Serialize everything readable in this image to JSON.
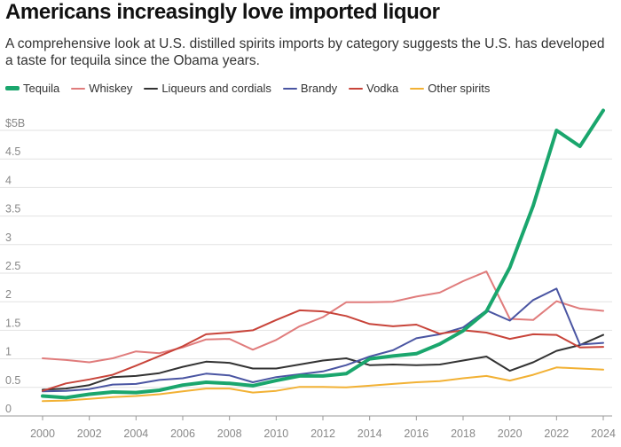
{
  "header": {
    "title": "Americans increasingly love imported liquor",
    "subtitle": "A comprehensive look at U.S. distilled spirits imports by category suggests the U.S. has developed a taste for tequila since the Obama years."
  },
  "chart_data": {
    "type": "line",
    "title": "Americans increasingly love imported liquor",
    "subtitle": "A comprehensive look at U.S. distilled spirits imports by category suggests the U.S. has developed a taste for tequila since the Obama years.",
    "xlabel": "",
    "ylabel": "",
    "x": [
      2000,
      2001,
      2002,
      2003,
      2004,
      2005,
      2006,
      2007,
      2008,
      2009,
      2010,
      2011,
      2012,
      2013,
      2014,
      2015,
      2016,
      2017,
      2018,
      2019,
      2020,
      2021,
      2022,
      2023,
      2024
    ],
    "xlim": [
      2000,
      2024
    ],
    "ylim": [
      0,
      5
    ],
    "grid": true,
    "legend_position": "top",
    "x_ticks": [
      "2000",
      "2002",
      "2004",
      "2006",
      "2008",
      "2010",
      "2012",
      "2014",
      "2016",
      "2018",
      "2020",
      "2022",
      "2024"
    ],
    "y_ticks": [
      "0",
      "0.5",
      "1",
      "1.5",
      "2",
      "2.5",
      "3",
      "3.5",
      "4",
      "4.5",
      "$5B"
    ],
    "series": [
      {
        "name": "Tequila",
        "color": "#1aa66d",
        "width": 4,
        "values": [
          0.35,
          0.32,
          0.38,
          0.42,
          0.41,
          0.45,
          0.54,
          0.59,
          0.57,
          0.53,
          0.62,
          0.7,
          0.7,
          0.74,
          1.0,
          1.05,
          1.09,
          1.26,
          1.49,
          1.83,
          2.6,
          3.68,
          5.0,
          4.72,
          5.35
        ]
      },
      {
        "name": "Whiskey",
        "color": "#e07c7c",
        "width": 2,
        "values": [
          1.01,
          0.98,
          0.94,
          1.01,
          1.13,
          1.1,
          1.2,
          1.34,
          1.35,
          1.16,
          1.33,
          1.57,
          1.73,
          1.99,
          1.99,
          2.0,
          2.09,
          2.16,
          2.36,
          2.53,
          1.7,
          1.68,
          2.01,
          1.88,
          1.84
        ]
      },
      {
        "name": "Liqueurs and cordials",
        "color": "#333333",
        "width": 2,
        "values": [
          0.46,
          0.48,
          0.54,
          0.68,
          0.7,
          0.75,
          0.86,
          0.95,
          0.93,
          0.83,
          0.83,
          0.9,
          0.97,
          1.01,
          0.89,
          0.9,
          0.89,
          0.9,
          0.97,
          1.04,
          0.79,
          0.94,
          1.14,
          1.24,
          1.42
        ]
      },
      {
        "name": "Brandy",
        "color": "#4a55a2",
        "width": 2,
        "values": [
          0.43,
          0.44,
          0.47,
          0.55,
          0.56,
          0.63,
          0.66,
          0.74,
          0.71,
          0.59,
          0.68,
          0.73,
          0.78,
          0.89,
          1.04,
          1.15,
          1.36,
          1.43,
          1.55,
          1.85,
          1.67,
          2.03,
          2.23,
          1.25,
          1.28
        ]
      },
      {
        "name": "Vodka",
        "color": "#c8443a",
        "width": 2,
        "values": [
          0.44,
          0.57,
          0.64,
          0.72,
          0.88,
          1.05,
          1.22,
          1.43,
          1.46,
          1.5,
          1.68,
          1.85,
          1.83,
          1.75,
          1.61,
          1.57,
          1.6,
          1.44,
          1.5,
          1.46,
          1.35,
          1.43,
          1.42,
          1.2,
          1.21
        ]
      },
      {
        "name": "Other spirits",
        "color": "#f2b134",
        "width": 2,
        "values": [
          0.26,
          0.27,
          0.3,
          0.33,
          0.35,
          0.38,
          0.43,
          0.48,
          0.48,
          0.41,
          0.44,
          0.51,
          0.51,
          0.5,
          0.53,
          0.56,
          0.59,
          0.61,
          0.66,
          0.7,
          0.62,
          0.72,
          0.85,
          0.83,
          0.81
        ]
      }
    ]
  }
}
